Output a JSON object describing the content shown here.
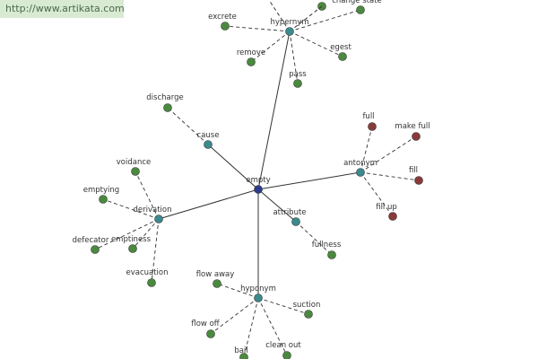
{
  "watermark": "http://www.artikata.com",
  "nodes": [
    {
      "label": "empty"
    },
    {
      "label": "hypernym"
    },
    {
      "label": "excrete"
    },
    {
      "label": "change state"
    },
    {
      "label": "remove"
    },
    {
      "label": "egest"
    },
    {
      "label": "pass"
    },
    {
      "label": "cause"
    },
    {
      "label": "discharge"
    },
    {
      "label": "antonym"
    },
    {
      "label": "full"
    },
    {
      "label": "make full"
    },
    {
      "label": "fill"
    },
    {
      "label": "fill up"
    },
    {
      "label": "derivation"
    },
    {
      "label": "voidance"
    },
    {
      "label": "emptying"
    },
    {
      "label": "defecator"
    },
    {
      "label": "emptiness"
    },
    {
      "label": "evacuation"
    },
    {
      "label": "attribute"
    },
    {
      "label": "fullness"
    },
    {
      "label": "hyponym"
    },
    {
      "label": "flow away"
    },
    {
      "label": "suction"
    },
    {
      "label": "flow off"
    },
    {
      "label": "bail"
    },
    {
      "label": "clean out"
    }
  ]
}
